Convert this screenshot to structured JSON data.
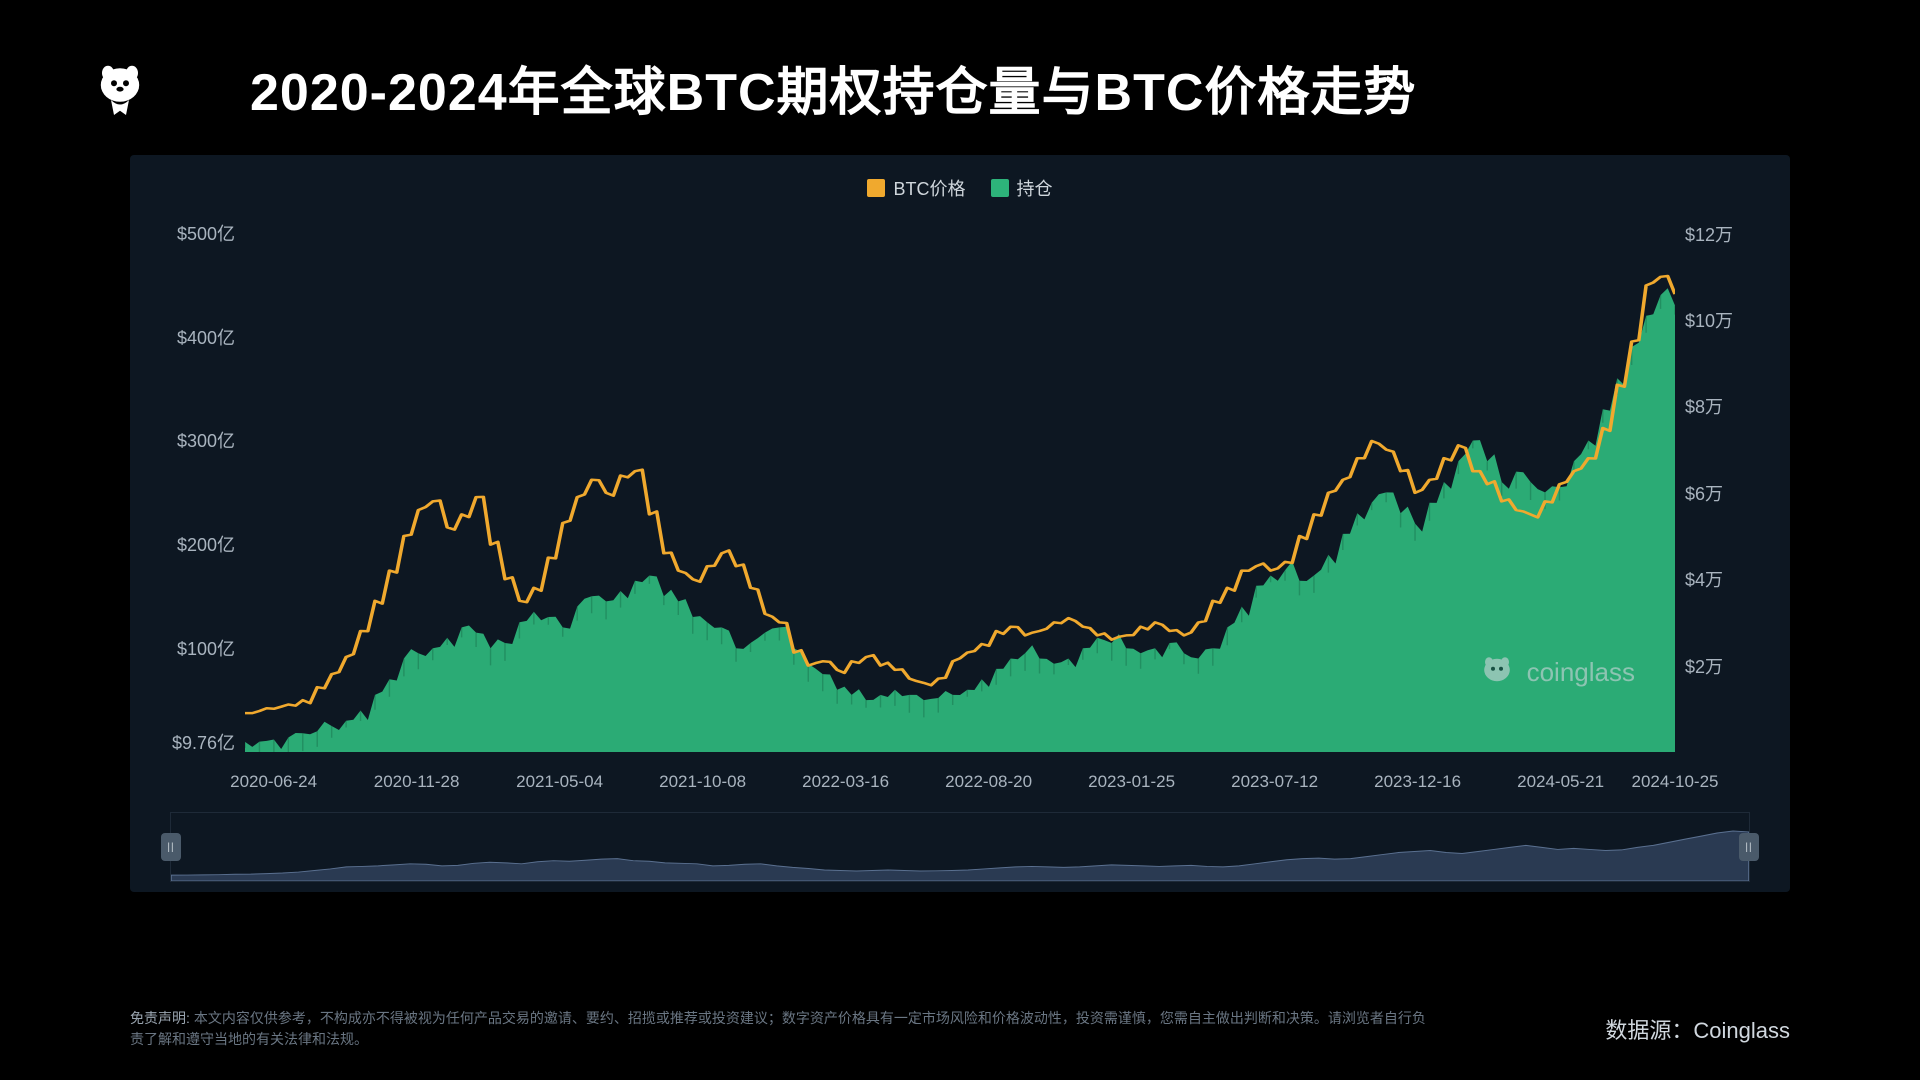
{
  "title": "2020-2024年全球BTC期权持仓量与BTC价格走势",
  "legend": {
    "series1": {
      "label": "BTC价格",
      "color": "#f0a92e"
    },
    "series2": {
      "label": "持仓",
      "color": "#2db37a"
    }
  },
  "chart": {
    "type": "area+line",
    "background": "#0d1722",
    "axis_text_color": "#a9b4bf",
    "axis_fontsize": 18,
    "left_axis": {
      "ticks": [
        {
          "value": 500,
          "label": "$500亿"
        },
        {
          "value": 400,
          "label": "$400亿"
        },
        {
          "value": 300,
          "label": "$300亿"
        },
        {
          "value": 200,
          "label": "$200亿"
        },
        {
          "value": 100,
          "label": "$100亿"
        },
        {
          "value": 9.76,
          "label": "$9.76亿"
        }
      ],
      "min": 0,
      "max": 520
    },
    "right_axis": {
      "ticks": [
        {
          "value": 12,
          "label": "$12万"
        },
        {
          "value": 10,
          "label": "$10万"
        },
        {
          "value": 8,
          "label": "$8万"
        },
        {
          "value": 6,
          "label": "$6万"
        },
        {
          "value": 4,
          "label": "$4万"
        },
        {
          "value": 2,
          "label": "$2万"
        }
      ],
      "min": 0,
      "max": 12.5
    },
    "x_axis": {
      "labels": [
        "2020-06-24",
        "2020-11-28",
        "2021-05-04",
        "2021-10-08",
        "2022-03-16",
        "2022-08-20",
        "2023-01-25",
        "2023-07-12",
        "2023-12-16",
        "2024-05-21",
        "2024-10-25"
      ],
      "positions_pct": [
        2,
        12,
        22,
        32,
        42,
        52,
        62,
        72,
        82,
        92,
        100
      ]
    },
    "open_interest_billion_usd": [
      9.76,
      10,
      12,
      14,
      18,
      20,
      25,
      30,
      40,
      55,
      70,
      90,
      95,
      100,
      110,
      120,
      115,
      100,
      105,
      125,
      135,
      130,
      120,
      140,
      150,
      145,
      155,
      165,
      170,
      150,
      145,
      130,
      125,
      120,
      100,
      105,
      115,
      120,
      100,
      85,
      75,
      60,
      55,
      50,
      55,
      60,
      55,
      50,
      52,
      55,
      60,
      70,
      80,
      90,
      95,
      90,
      85,
      90,
      100,
      110,
      105,
      100,
      95,
      100,
      105,
      95,
      90,
      100,
      120,
      140,
      160,
      170,
      175,
      165,
      170,
      190,
      210,
      230,
      240,
      250,
      230,
      220,
      240,
      260,
      280,
      300,
      280,
      260,
      270,
      260,
      250,
      255,
      280,
      300,
      330,
      360,
      390,
      420,
      440,
      430
    ],
    "btc_price_10k_usd": [
      0.9,
      0.95,
      1.0,
      1.1,
      1.2,
      1.5,
      1.8,
      2.2,
      2.8,
      3.5,
      4.2,
      5.0,
      5.6,
      5.8,
      5.2,
      5.5,
      5.9,
      4.8,
      4.0,
      3.5,
      3.8,
      4.5,
      5.3,
      5.9,
      6.3,
      6.0,
      6.4,
      6.5,
      5.5,
      4.6,
      4.2,
      4.0,
      4.3,
      4.6,
      4.3,
      3.8,
      3.2,
      3.0,
      2.3,
      2.0,
      2.1,
      1.9,
      2.1,
      2.2,
      2.0,
      1.9,
      1.7,
      1.6,
      1.7,
      2.1,
      2.3,
      2.5,
      2.8,
      2.9,
      2.7,
      2.8,
      3.0,
      3.1,
      2.9,
      2.7,
      2.6,
      2.7,
      2.9,
      3.0,
      2.8,
      2.7,
      3.0,
      3.5,
      3.8,
      4.2,
      4.3,
      4.2,
      4.4,
      5.0,
      5.5,
      6.0,
      6.3,
      6.8,
      7.2,
      7.0,
      6.5,
      6.0,
      6.3,
      6.8,
      7.1,
      6.5,
      6.2,
      5.8,
      5.6,
      5.5,
      5.8,
      6.2,
      6.5,
      6.8,
      7.5,
      8.5,
      9.5,
      10.8,
      11.0,
      10.6
    ],
    "line_color": "#f0a92e",
    "line_width": 2.5,
    "area_fill": "#2db37a",
    "area_opacity": 0.95
  },
  "watermark_text": "coinglass",
  "source_label": "数据源：",
  "source_value": "Coinglass",
  "disclaimer_label": "免责声明:",
  "disclaimer_text": "本文内容仅供参考，不构成亦不得被视为任何产品交易的邀请、要约、招揽或推荐或投资建议；数字资产价格具有一定市场风险和价格波动性，投资需谨慎，您需自主做出判断和决策。请浏览者自行负责了解和遵守当地的有关法律和法规。"
}
